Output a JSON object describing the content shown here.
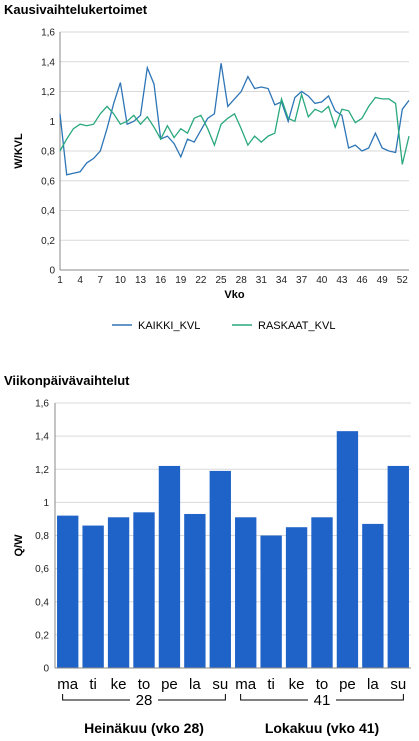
{
  "chart_data": [
    {
      "type": "line",
      "title": "Kausivaihtelukertoimet",
      "xlabel": "Vko",
      "ylabel": "W/KVL",
      "ylim": [
        0,
        1.6
      ],
      "yticks": [
        "0",
        "0,2",
        "0,4",
        "0,6",
        "0,8",
        "1",
        "1,2",
        "1,4",
        "1,6"
      ],
      "xticks": [
        "1",
        "4",
        "7",
        "10",
        "13",
        "16",
        "19",
        "22",
        "25",
        "28",
        "31",
        "34",
        "37",
        "40",
        "43",
        "46",
        "49",
        "52"
      ],
      "x": [
        1,
        2,
        3,
        4,
        5,
        6,
        7,
        8,
        9,
        10,
        11,
        12,
        13,
        14,
        15,
        16,
        17,
        18,
        19,
        20,
        21,
        22,
        23,
        24,
        25,
        26,
        27,
        28,
        29,
        30,
        31,
        32,
        33,
        34,
        35,
        36,
        37,
        38,
        39,
        40,
        41,
        42,
        43,
        44,
        45,
        46,
        47,
        48,
        49,
        50,
        51,
        52,
        53
      ],
      "grid": true,
      "legend_position": "bottom",
      "series": [
        {
          "name": "KAIKKI_KVL",
          "color": "#2e75b6",
          "values": [
            1.05,
            0.64,
            0.65,
            0.66,
            0.72,
            0.75,
            0.8,
            0.95,
            1.12,
            1.26,
            0.98,
            1.0,
            1.04,
            1.36,
            1.25,
            0.88,
            0.9,
            0.85,
            0.76,
            0.88,
            0.86,
            0.94,
            1.02,
            1.05,
            1.39,
            1.1,
            1.15,
            1.2,
            1.3,
            1.22,
            1.23,
            1.22,
            1.11,
            1.13,
            1.0,
            1.16,
            1.2,
            1.17,
            1.12,
            1.13,
            1.17,
            1.07,
            1.04,
            0.82,
            0.84,
            0.8,
            0.82,
            0.92,
            0.82,
            0.8,
            0.79,
            1.08,
            1.14
          ]
        },
        {
          "name": "RASKAAT_KVL",
          "color": "#2aa87e",
          "values": [
            0.8,
            0.88,
            0.95,
            0.98,
            0.97,
            0.98,
            1.05,
            1.1,
            1.05,
            0.98,
            1.0,
            1.04,
            0.98,
            1.03,
            0.96,
            0.88,
            0.97,
            0.89,
            0.95,
            0.92,
            1.02,
            1.04,
            0.95,
            0.84,
            0.98,
            1.02,
            1.05,
            0.95,
            0.84,
            0.9,
            0.86,
            0.9,
            0.92,
            1.15,
            1.02,
            1.0,
            1.18,
            1.03,
            1.08,
            1.06,
            1.1,
            0.96,
            1.08,
            1.07,
            0.99,
            1.02,
            1.1,
            1.16,
            1.15,
            1.15,
            1.12,
            0.71,
            0.9
          ]
        }
      ]
    },
    {
      "type": "bar",
      "title": "Viikonpäivävaihtelut",
      "xlabel": "",
      "ylabel": "Q/W",
      "ylim": [
        0,
        1.6
      ],
      "yticks": [
        "0",
        "0,2",
        "0,4",
        "0,6",
        "0,8",
        "1",
        "1,2",
        "1,4",
        "1,6"
      ],
      "categories": [
        "ma",
        "ti",
        "ke",
        "to",
        "pe",
        "la",
        "su",
        "ma",
        "ti",
        "ke",
        "to",
        "pe",
        "la",
        "su"
      ],
      "values": [
        0.92,
        0.86,
        0.91,
        0.94,
        1.22,
        0.93,
        1.19,
        0.91,
        0.8,
        0.85,
        0.91,
        1.43,
        0.87,
        1.22
      ],
      "bar_color": "#1f63c9",
      "grid": true,
      "groups": [
        {
          "week": "28",
          "month": "Heinäkuu (vko 28)"
        },
        {
          "week": "41",
          "month": "Lokakuu (vko 41)"
        }
      ]
    }
  ]
}
